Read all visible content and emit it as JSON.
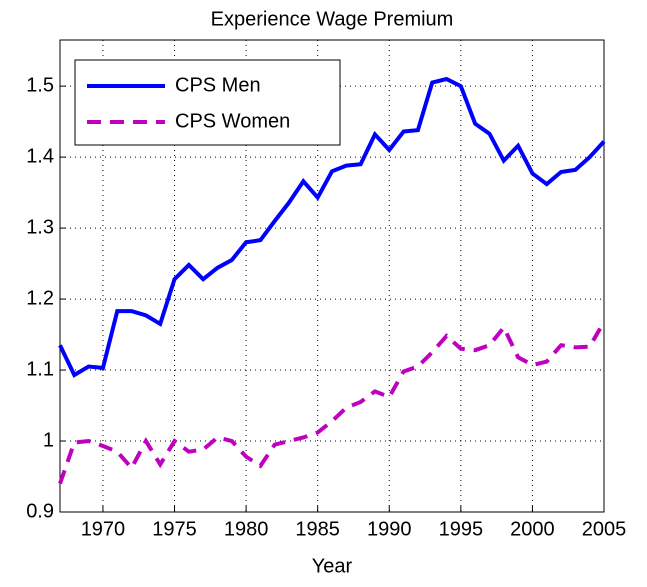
{
  "chart_data": {
    "type": "line",
    "title": "Experience Wage Premium",
    "x_label": "Year",
    "x": [
      1967,
      1968,
      1969,
      1970,
      1971,
      1972,
      1973,
      1974,
      1975,
      1976,
      1977,
      1978,
      1979,
      1980,
      1981,
      1982,
      1983,
      1984,
      1985,
      1986,
      1987,
      1988,
      1989,
      1990,
      1991,
      1992,
      1993,
      1994,
      1995,
      1996,
      1997,
      1998,
      1999,
      2000,
      2001,
      2002,
      2003,
      2004,
      2005
    ],
    "series": [
      {
        "name": "CPS Men",
        "color": "#0000ff",
        "dash": "solid",
        "values": [
          1.135,
          1.093,
          1.105,
          1.103,
          1.183,
          1.183,
          1.177,
          1.165,
          1.228,
          1.248,
          1.228,
          1.244,
          1.255,
          1.28,
          1.283,
          1.31,
          1.336,
          1.366,
          1.343,
          1.38,
          1.388,
          1.39,
          1.432,
          1.41,
          1.436,
          1.438,
          1.505,
          1.51,
          1.5,
          1.447,
          1.433,
          1.395,
          1.416,
          1.377,
          1.362,
          1.379,
          1.382,
          1.4,
          1.422
        ]
      },
      {
        "name": "CPS Women",
        "color": "#bf00bf",
        "dash": "dashed",
        "values": [
          0.94,
          0.998,
          1.0,
          0.993,
          0.985,
          0.962,
          1.0,
          0.967,
          1.0,
          0.985,
          0.988,
          1.005,
          1.0,
          0.978,
          0.965,
          0.995,
          1.0,
          1.005,
          1.012,
          1.028,
          1.047,
          1.055,
          1.07,
          1.062,
          1.098,
          1.105,
          1.125,
          1.148,
          1.13,
          1.128,
          1.135,
          1.16,
          1.118,
          1.107,
          1.112,
          1.135,
          1.132,
          1.133,
          1.168
        ]
      }
    ],
    "xlim": [
      1967,
      2005
    ],
    "xticks": [
      1970,
      1975,
      1980,
      1985,
      1990,
      1995,
      2000,
      2005
    ],
    "ylim": [
      0.9,
      1.565
    ],
    "yticks": [
      0.9,
      1,
      1.1,
      1.2,
      1.3,
      1.4,
      1.5
    ],
    "grid": true,
    "legend": "upper-left"
  }
}
